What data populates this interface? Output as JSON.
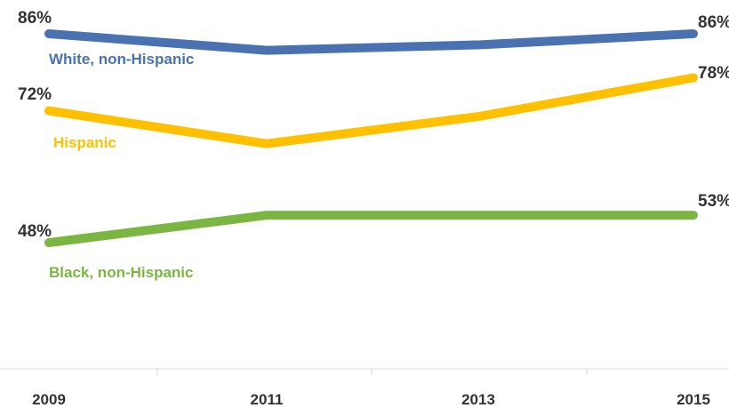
{
  "chart_data": {
    "type": "line",
    "categories": [
      "2009",
      "2011",
      "2013",
      "2015"
    ],
    "x": [
      2009,
      2011,
      2013,
      2015
    ],
    "title": "",
    "xlabel": "",
    "ylabel": "",
    "ylim": [
      0,
      100
    ],
    "grid": false,
    "legend": "inline labels beside each line",
    "series": [
      {
        "name": "White, non-Hispanic",
        "values": [
          86,
          83,
          84,
          86
        ],
        "color": "#4a72b0",
        "label_start": "86%",
        "label_end": "86%"
      },
      {
        "name": "Hispanic",
        "values": [
          72,
          66,
          71,
          78
        ],
        "color": "#ffc000",
        "label_start": "72%",
        "label_end": "78%"
      },
      {
        "name": "Black, non-Hispanic",
        "values": [
          48,
          53,
          53,
          53
        ],
        "color": "#7cb642",
        "label_start": "48%",
        "label_end": "53%"
      }
    ]
  }
}
